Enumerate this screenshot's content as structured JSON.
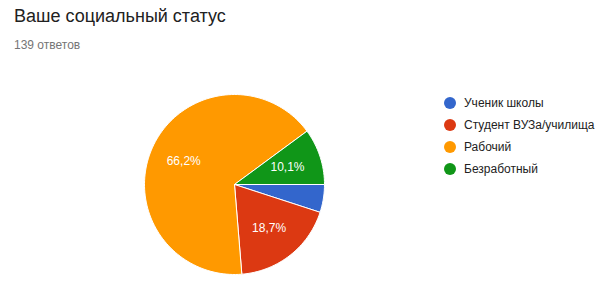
{
  "chart_data": {
    "type": "pie",
    "title": "Ваше социальный статус",
    "subtitle": "139 ответов",
    "categories": [
      "Ученик школы",
      "Студент ВУЗа/училища",
      "Рабочий",
      "Безработный"
    ],
    "values": [
      5.0,
      18.7,
      66.2,
      10.1
    ],
    "value_labels": [
      null,
      "18,7%",
      "66,2%",
      "10,1%"
    ],
    "colors": [
      "#3366cc",
      "#dc3912",
      "#ff9900",
      "#109618"
    ],
    "data_labels": true,
    "legend": "right"
  }
}
